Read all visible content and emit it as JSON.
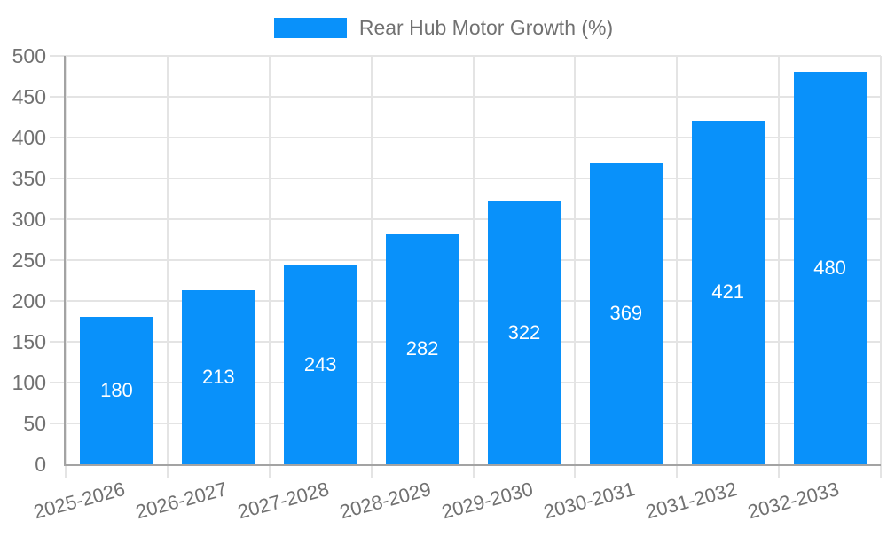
{
  "chart_data": {
    "type": "bar",
    "title": "Rear Hub Motor Growth (%)",
    "legend": {
      "position": "top",
      "label": "Rear Hub Motor Growth (%)"
    },
    "categories": [
      "2025-2026",
      "2026-2027",
      "2027-2028",
      "2028-2029",
      "2029-2030",
      "2030-2031",
      "2031-2032",
      "2032-2033"
    ],
    "values": [
      180,
      213,
      243,
      282,
      322,
      369,
      421,
      480
    ],
    "xlabel": "",
    "ylabel": "",
    "ylim": [
      0,
      500
    ],
    "ytick_step": 50,
    "grid": true,
    "bar_value_labels_inside": true,
    "colors": {
      "bar": "#0991fa",
      "bar_value_label": "#ffffff",
      "gridline": "#e4e4e4",
      "axis_line": "#a3a3a3",
      "tick_label": "#717171",
      "legend_text": "#717171",
      "background": "#ffffff"
    }
  }
}
